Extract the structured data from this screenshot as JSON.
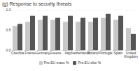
{
  "chart_data": {
    "type": "bar",
    "title": "(g) Response to security threats",
    "categories": [
      "Czechia",
      "France",
      "Germany",
      "Greece",
      "Italy",
      "Netherlands",
      "Poland",
      "Portugal",
      "Spain",
      "United Kingdom"
    ],
    "series": [
      {
        "name": "Pro-EU mass %",
        "color": "#c8c8c8",
        "values": [
          0.6,
          0.7,
          0.75,
          0.75,
          0.7,
          0.7,
          0.7,
          0.8,
          0.75,
          0.55
        ]
      },
      {
        "name": "Pro-EU elite %",
        "color": "#555555",
        "values": [
          0.65,
          0.85,
          0.85,
          0.8,
          0.85,
          0.8,
          0.8,
          0.9,
          0.85,
          0.4
        ]
      }
    ],
    "ylim": [
      0,
      1
    ],
    "yticks": [
      0,
      0.5,
      1
    ],
    "legend": "bottom"
  }
}
